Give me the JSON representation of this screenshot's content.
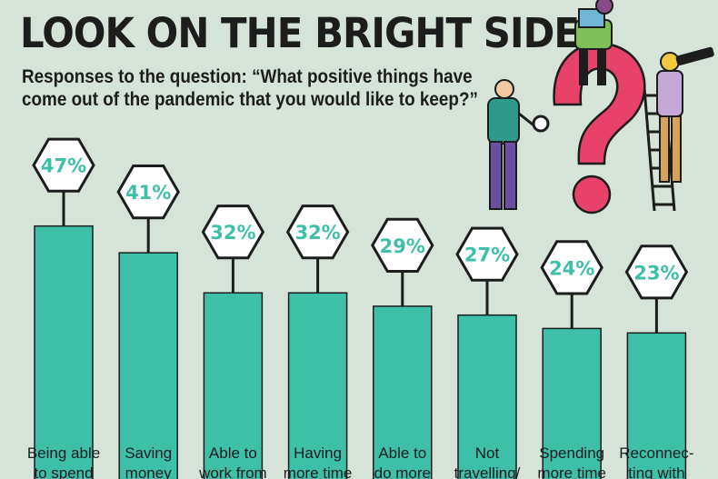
{
  "title": "LOOK ON THE BRIGHT SIDE",
  "subtitle_line1": "Responses to the question: “What positive things have",
  "subtitle_line2": "come out of the pandemic that you would like to keep?”",
  "colors": {
    "background": "#d5e3d8",
    "bar": "#3dbfa8",
    "bar_edge": "#1d1d1d",
    "label_text": "#3dbfa8",
    "hexagon_fill": "#ffffff",
    "question_mark": "#e8416a"
  },
  "chart_data": {
    "type": "bar",
    "title": "LOOK ON THE BRIGHT SIDE",
    "categories": [
      [
        "Being able",
        "to spend"
      ],
      [
        "Saving",
        "money"
      ],
      [
        "Able to",
        "work from"
      ],
      [
        "Having",
        "more time"
      ],
      [
        "Able to",
        "do more"
      ],
      [
        "Not",
        "travelling/"
      ],
      [
        "Spending",
        "more time"
      ],
      [
        "Reconnec-",
        "ting with"
      ]
    ],
    "values": [
      47,
      41,
      32,
      32,
      29,
      27,
      24,
      23
    ],
    "value_labels": [
      "47%",
      "41%",
      "32%",
      "32%",
      "29%",
      "27%",
      "24%",
      "23%"
    ],
    "unit": "%",
    "ylim": [
      0,
      60
    ],
    "grid": false,
    "legend": "none"
  },
  "illustration": {
    "icons": [
      "question-mark-icon",
      "ladder-icon",
      "person-with-laptop-icon",
      "person-with-magnifier-icon",
      "person-with-telescope-icon"
    ]
  }
}
